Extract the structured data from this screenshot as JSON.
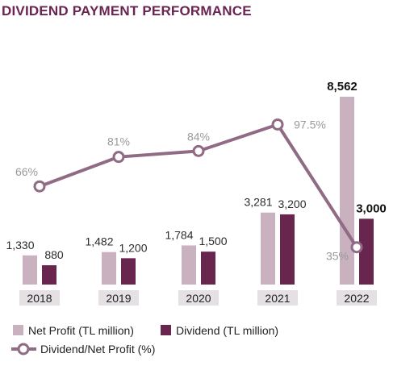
{
  "chart_data": {
    "type": "bar",
    "title": "DIVIDEND PAYMENT PERFORMANCE",
    "categories": [
      "2018",
      "2019",
      "2020",
      "2021",
      "2022"
    ],
    "series": [
      {
        "name": "Net Profit (TL million)",
        "type": "bar",
        "values": [
          1330,
          1482,
          1784,
          3281,
          8562
        ],
        "labels": [
          "1,330",
          "1,482",
          "1,784",
          "3,281",
          "8,562"
        ]
      },
      {
        "name": "Dividend (TL million)",
        "type": "bar",
        "values": [
          880,
          1200,
          1500,
          3200,
          3000
        ],
        "labels": [
          "880",
          "1,200",
          "1,500",
          "3,200",
          "3,000"
        ]
      },
      {
        "name": "Dividend/Net Profit (%)",
        "type": "line",
        "values": [
          66,
          81,
          84,
          97.5,
          35
        ],
        "labels": [
          "66%",
          "81%",
          "84%",
          "97.5%",
          "35%"
        ]
      }
    ],
    "grid": false,
    "legend_position": "bottom-left"
  },
  "colors": {
    "title": "#6b2452",
    "net_profit": "#c9b1c0",
    "dividend": "#68264f",
    "ratio_line": "#8f6b84",
    "tick_bg": "#e4e0e4"
  },
  "legend_icon": "line-with-circle-marker"
}
